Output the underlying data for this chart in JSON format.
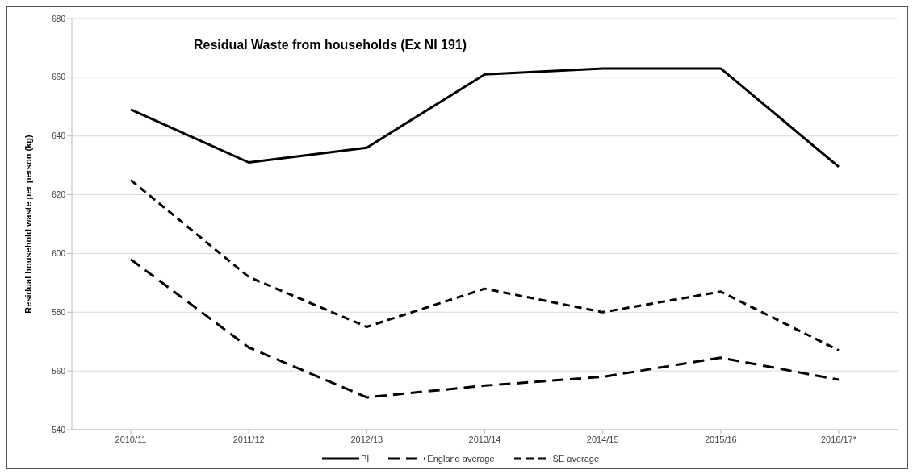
{
  "chart_data": {
    "type": "line",
    "title": "Residual Waste from households (Ex NI 191)",
    "ylabel": "Residual household waste per person (kg)",
    "categories": [
      "2010/11",
      "2011/12",
      "2012/13",
      "2013/14",
      "2014/15",
      "2015/16",
      "2016/17*"
    ],
    "series": [
      {
        "name": "PI",
        "color": "#000000",
        "line_style": "solid",
        "values": [
          649,
          631,
          636,
          661,
          663,
          663,
          629.5
        ]
      },
      {
        "name": "England average",
        "color": "#000000",
        "line_style": "dashed",
        "values": [
          598,
          568,
          551,
          555,
          558,
          564.5,
          557
        ]
      },
      {
        "name": "SE average",
        "color": "#000000",
        "line_style": "dashed",
        "values": [
          625,
          592,
          575,
          588,
          580,
          587,
          567
        ]
      }
    ],
    "ylim": [
      540,
      680
    ],
    "yticks": [
      540,
      560,
      580,
      600,
      620,
      640,
      660,
      680
    ],
    "grid": "y",
    "legend": "bottom",
    "marker": "none"
  }
}
